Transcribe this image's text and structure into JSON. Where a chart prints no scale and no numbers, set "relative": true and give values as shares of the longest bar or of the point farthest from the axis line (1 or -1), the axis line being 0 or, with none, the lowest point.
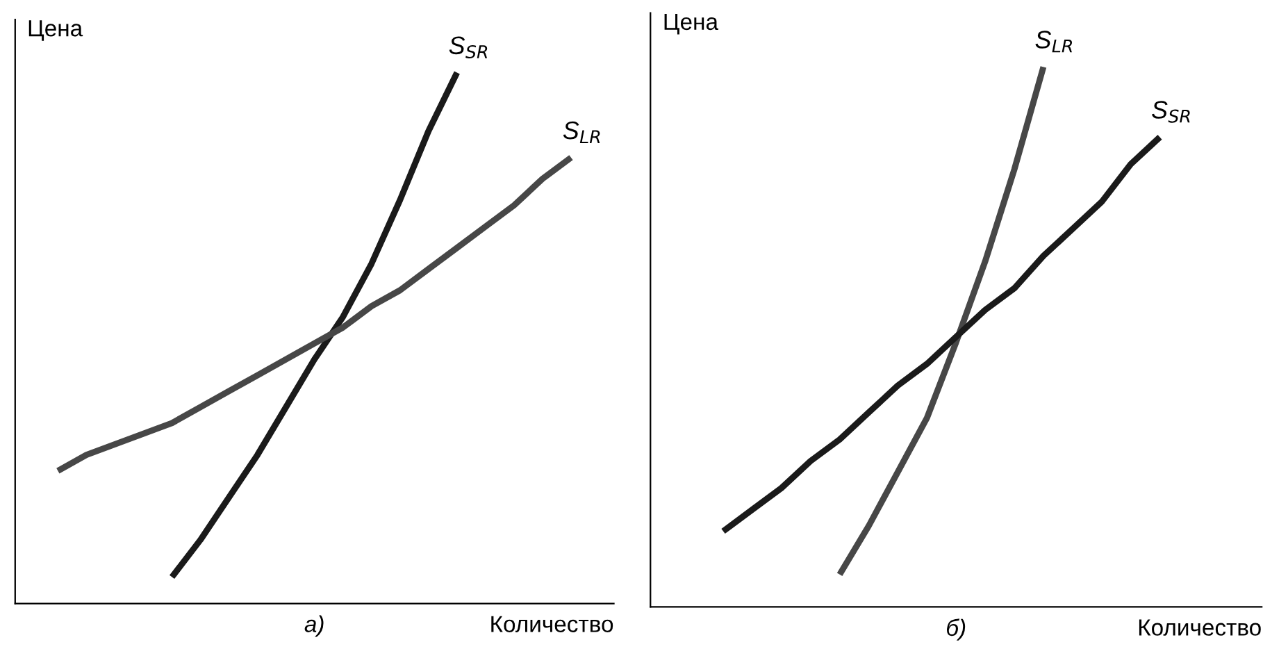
{
  "chart_data": [
    {
      "type": "line",
      "relative": true,
      "title": "а)",
      "xlabel": "Количество",
      "ylabel": "Цена",
      "legend": false,
      "categories": [
        null,
        null,
        null,
        null,
        null,
        null,
        null,
        null,
        null,
        null,
        null,
        null,
        null,
        null,
        null,
        null,
        null,
        null,
        null,
        null,
        null
      ],
      "series": [
        {
          "name": "S$_{SR}$",
          "color": "#1a1a1a",
          "values": [
            null,
            null,
            null,
            null,
            null,
            0.05,
            0.12,
            0.2,
            0.28,
            0.37,
            0.46,
            0.54,
            0.64,
            0.76,
            0.89,
            1.0,
            null,
            null,
            null,
            null,
            null
          ]
        },
        {
          "name": "S$_{LR}$",
          "color": "#474747",
          "values": [
            null,
            0.25,
            0.28,
            0.3,
            0.32,
            0.34,
            0.37,
            0.4,
            0.43,
            0.46,
            0.49,
            0.52,
            0.56,
            0.59,
            0.63,
            0.67,
            0.71,
            0.75,
            0.8,
            0.84,
            null
          ]
        }
      ]
    },
    {
      "type": "line",
      "relative": true,
      "title": "б)",
      "xlabel": "Количество",
      "ylabel": "Цена",
      "legend": false,
      "categories": [
        null,
        null,
        null,
        null,
        null,
        null,
        null,
        null,
        null,
        null,
        null,
        null,
        null,
        null,
        null,
        null,
        null,
        null,
        null,
        null,
        null
      ],
      "series": [
        {
          "name": "S$_{LR}$",
          "color": "#474747",
          "values": [
            null,
            null,
            null,
            null,
            null,
            null,
            0.06,
            0.15,
            0.25,
            0.35,
            0.49,
            0.64,
            0.81,
            1.0,
            null,
            null,
            null,
            null,
            null,
            null,
            null
          ]
        },
        {
          "name": "S$_{SR}$",
          "color": "#1a1a1a",
          "values": [
            null,
            null,
            0.14,
            0.18,
            0.22,
            0.27,
            0.31,
            0.36,
            0.41,
            0.45,
            0.5,
            0.55,
            0.59,
            0.65,
            0.7,
            0.75,
            0.82,
            0.87,
            null,
            null,
            null
          ]
        }
      ]
    }
  ]
}
